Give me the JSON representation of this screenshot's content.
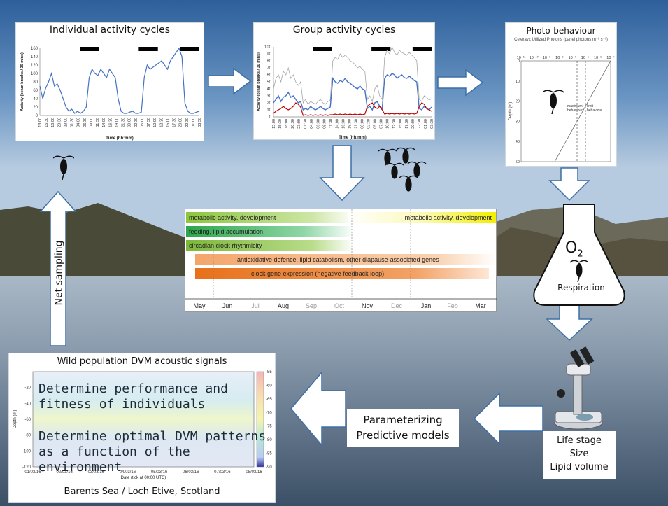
{
  "panels": {
    "individual": {
      "title": "Individual activity cycles",
      "ylabel": "Activity (beam breaks / 30 mins)",
      "xlabel": "Time (hh:mm)",
      "yticks": [
        "160",
        "140",
        "120",
        "100",
        "80",
        "60",
        "40",
        "20",
        "0"
      ],
      "xticks": [
        "13:00",
        "15:30",
        "18:00",
        "20:30",
        "23:00",
        "01:30",
        "04:00",
        "06:30",
        "09:00",
        "11:30",
        "14:00",
        "16:30",
        "19:00",
        "21:30",
        "00:00",
        "02:30",
        "05:00",
        "07:30",
        "10:00",
        "12:30",
        "15:00",
        "17:30",
        "20:00",
        "22:30",
        "01:00",
        "03:30"
      ]
    },
    "group": {
      "title": "Group activity cycles",
      "ylabel": "Activity (beam breaks / 30 mins)",
      "xlabel": "Time (hh:mm)",
      "yticks": [
        "100",
        "90",
        "80",
        "70",
        "60",
        "50",
        "40",
        "30",
        "20",
        "10",
        "0"
      ],
      "xticks": [
        "13:00",
        "15:30",
        "18:00",
        "20:30",
        "23:00",
        "01:30",
        "04:00",
        "06:30",
        "09:00",
        "11:30",
        "14:00",
        "16:30",
        "19:00",
        "21:30",
        "00:00",
        "02:30",
        "05:00",
        "07:30",
        "10:00",
        "12:30",
        "15:00",
        "17:30",
        "20:00",
        "22:30",
        "01:00",
        "03:30"
      ]
    },
    "photo": {
      "title": "Photo-behaviour",
      "subtitle": "Celeravx Utilized Photons (panel photons m⁻² s⁻¹)",
      "ylabel": "Depth (m)",
      "xticks": [
        "10⁻¹¹",
        "10⁻¹⁰",
        "10⁻⁹",
        "10⁻⁸",
        "10⁻⁷",
        "10⁻⁶",
        "10⁻⁵",
        "10⁻⁴"
      ],
      "yticks": [
        "0",
        "10",
        "20",
        "30",
        "40",
        "50"
      ],
      "label_a": "behaviour",
      "label_b": "behaviour",
      "label_a_top": "maximum",
      "label_b_top": "limit"
    },
    "acoustic": {
      "title": "Wild population DVM acoustic signals",
      "caption": "Barents Sea / Loch Etive, Scotland",
      "ylabel": "Depth (m)",
      "xlabel": "Date (tick at 00:00 UTC)",
      "yticks": [
        "-20",
        "-40",
        "-60",
        "-80",
        "-100",
        "-120"
      ],
      "xticks": [
        "01/03/16",
        "02/03/16",
        "03/03/16",
        "04/03/16",
        "05/03/16",
        "06/03/16",
        "07/03/16",
        "08/03/16"
      ],
      "cbar_ticks": [
        "-55",
        "-60",
        "-65",
        "-70",
        "-75",
        "-80",
        "-85",
        "-90"
      ],
      "text1_l1": "Determine performance and",
      "text1_l2": "fitness of individuals",
      "text2_l1": "Determine optimal DVM patterns",
      "text2_l2": "as a function of the environment"
    }
  },
  "gantt": {
    "months": [
      "May",
      "Jun",
      "Jul",
      "Aug",
      "Sep",
      "Oct",
      "Nov",
      "Dec",
      "Jan",
      "Feb",
      "Mar"
    ],
    "bars": [
      {
        "label": "metabolic activity, development"
      },
      {
        "label": "metabolic activity, development"
      },
      {
        "label": "feeding, lipid accumulation"
      },
      {
        "label": "circadian clock rhythmicity"
      },
      {
        "label": "antioxidative defence, lipid catabolism, other diapause-associated genes"
      },
      {
        "label": "clock gene expression (negative feedback loop)"
      }
    ]
  },
  "labels": {
    "net_sampling": "Net sampling",
    "o2_base": "O",
    "o2_sub": "2",
    "respiration": "Respiration",
    "predictive_l1": "Parameterizing",
    "predictive_l2": "Predictive models",
    "life_l1": "Life stage",
    "life_l2": "Size",
    "life_l3": "Lipid volume"
  },
  "colors": {
    "series_blue": "#4472c4",
    "series_red": "#c00000",
    "series_grey": "#a6a6a6",
    "green": "#2e9e3e",
    "yellow": "#f2ef00",
    "orange": "#e8701a"
  },
  "chart_data": [
    {
      "type": "line",
      "title": "Individual activity cycles",
      "xlabel": "Time (hh:mm)",
      "ylabel": "Activity (beam breaks / 30 mins)",
      "ylim": [
        0,
        160
      ],
      "series": [
        {
          "values": [
            70,
            40,
            65,
            80,
            100,
            70,
            75,
            60,
            40,
            20,
            10,
            15,
            5,
            10,
            5,
            10,
            20,
            90,
            110,
            100,
            95,
            110,
            100,
            90,
            110,
            100,
            90,
            40,
            10,
            5,
            5,
            8,
            10,
            5,
            5,
            8,
            90,
            120,
            110,
            115,
            120,
            125,
            130,
            120,
            110,
            130,
            140,
            150,
            160,
            140,
            30,
            10,
            5,
            5,
            8,
            10
          ]
        }
      ]
    },
    {
      "type": "line",
      "title": "Group activity cycles",
      "xlabel": "Time (hh:mm)",
      "ylabel": "Activity (beam breaks / 30 mins)",
      "ylim": [
        0,
        100
      ],
      "series": [
        {
          "values": [
            20,
            25,
            30,
            22,
            28,
            30,
            35,
            28,
            30,
            25,
            20,
            22,
            10,
            12,
            10,
            15,
            12,
            10,
            12,
            15,
            12,
            10,
            12,
            14,
            55,
            50,
            48,
            52,
            50,
            55,
            50,
            48,
            45,
            42,
            40,
            44,
            40,
            38,
            12,
            15,
            10,
            20,
            22,
            15,
            12,
            55,
            60,
            58,
            62,
            60,
            55,
            58,
            60,
            56,
            55,
            58,
            55,
            52,
            50,
            12,
            10,
            15,
            12,
            10,
            14
          ]
        },
        {
          "values": [
            5,
            8,
            10,
            12,
            15,
            12,
            10,
            12,
            15,
            20,
            18,
            14,
            2,
            3,
            2,
            3,
            2,
            3,
            2,
            3,
            2,
            3,
            2,
            3,
            3,
            4,
            3,
            4,
            3,
            4,
            3,
            4,
            3,
            4,
            3,
            4,
            3,
            4,
            15,
            18,
            20,
            14,
            12,
            15,
            10,
            4,
            5,
            4,
            5,
            4,
            5,
            4,
            5,
            4,
            5,
            4,
            5,
            4,
            5,
            15,
            20,
            18,
            12,
            10,
            8
          ]
        },
        {
          "values": [
            40,
            55,
            60,
            50,
            65,
            60,
            70,
            55,
            60,
            50,
            45,
            50,
            20,
            25,
            18,
            22,
            20,
            18,
            22,
            25,
            20,
            18,
            22,
            24,
            80,
            85,
            82,
            90,
            85,
            88,
            85,
            80,
            78,
            75,
            70,
            72,
            68,
            65,
            25,
            30,
            22,
            40,
            45,
            30,
            25,
            85,
            95,
            90,
            100,
            92,
            88,
            95,
            92,
            90,
            88,
            92,
            88,
            85,
            80,
            25,
            22,
            30,
            28,
            24,
            26
          ]
        }
      ]
    }
  ]
}
